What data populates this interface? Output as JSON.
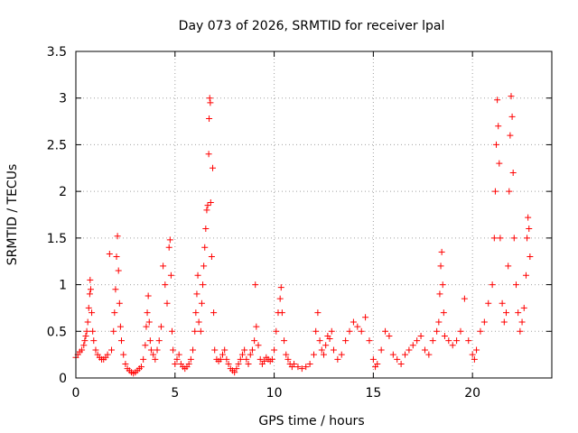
{
  "chart_data": {
    "type": "scatter",
    "title": "Day 073 of 2026, SRMTID for receiver lpal",
    "xlabel": "GPS time / hours",
    "ylabel": "SRMTID / TECUs",
    "xlim": [
      0,
      24
    ],
    "ylim": [
      0,
      3.5
    ],
    "xticks": [
      0,
      5,
      10,
      15,
      20
    ],
    "xtick_labels": [
      "0",
      "5",
      "10",
      "15",
      "20"
    ],
    "yticks": [
      0,
      0.5,
      1,
      1.5,
      2,
      2.5,
      3,
      3.5
    ],
    "ytick_labels": [
      "0",
      "0.5",
      "1",
      "1.5",
      "2",
      "2.5",
      "3",
      "3.5"
    ],
    "grid": true,
    "marker": "+",
    "colors": {
      "series": "#ff0000",
      "grid": "#a0a0a0",
      "axis": "#000000"
    },
    "series": [
      {
        "name": "SRMTID",
        "points": [
          [
            0.0,
            0.22
          ],
          [
            0.1,
            0.25
          ],
          [
            0.2,
            0.28
          ],
          [
            0.3,
            0.3
          ],
          [
            0.4,
            0.35
          ],
          [
            0.45,
            0.4
          ],
          [
            0.5,
            0.45
          ],
          [
            0.55,
            0.5
          ],
          [
            0.6,
            0.6
          ],
          [
            0.65,
            0.75
          ],
          [
            0.7,
            0.9
          ],
          [
            0.72,
            1.05
          ],
          [
            0.75,
            0.95
          ],
          [
            0.8,
            0.7
          ],
          [
            0.85,
            0.5
          ],
          [
            0.9,
            0.4
          ],
          [
            1.0,
            0.3
          ],
          [
            1.1,
            0.25
          ],
          [
            1.2,
            0.22
          ],
          [
            1.3,
            0.2
          ],
          [
            1.4,
            0.2
          ],
          [
            1.5,
            0.22
          ],
          [
            1.6,
            0.25
          ],
          [
            1.7,
            1.33
          ],
          [
            1.8,
            0.3
          ],
          [
            1.9,
            0.5
          ],
          [
            1.95,
            0.7
          ],
          [
            2.0,
            0.95
          ],
          [
            2.05,
            1.3
          ],
          [
            2.1,
            1.52
          ],
          [
            2.15,
            1.15
          ],
          [
            2.2,
            0.8
          ],
          [
            2.25,
            0.55
          ],
          [
            2.3,
            0.4
          ],
          [
            2.4,
            0.25
          ],
          [
            2.5,
            0.15
          ],
          [
            2.6,
            0.1
          ],
          [
            2.7,
            0.08
          ],
          [
            2.8,
            0.06
          ],
          [
            2.9,
            0.05
          ],
          [
            3.0,
            0.06
          ],
          [
            3.1,
            0.08
          ],
          [
            3.2,
            0.1
          ],
          [
            3.3,
            0.12
          ],
          [
            3.4,
            0.2
          ],
          [
            3.5,
            0.35
          ],
          [
            3.55,
            0.55
          ],
          [
            3.6,
            0.7
          ],
          [
            3.65,
            0.88
          ],
          [
            3.7,
            0.6
          ],
          [
            3.75,
            0.4
          ],
          [
            3.8,
            0.3
          ],
          [
            3.9,
            0.25
          ],
          [
            4.0,
            0.2
          ],
          [
            4.1,
            0.3
          ],
          [
            4.2,
            0.4
          ],
          [
            4.3,
            0.55
          ],
          [
            4.4,
            1.2
          ],
          [
            4.5,
            1.0
          ],
          [
            4.6,
            0.8
          ],
          [
            4.7,
            1.4
          ],
          [
            4.75,
            1.48
          ],
          [
            4.8,
            1.1
          ],
          [
            4.85,
            0.5
          ],
          [
            4.9,
            0.3
          ],
          [
            5.0,
            0.15
          ],
          [
            5.1,
            0.2
          ],
          [
            5.2,
            0.25
          ],
          [
            5.3,
            0.15
          ],
          [
            5.4,
            0.12
          ],
          [
            5.5,
            0.1
          ],
          [
            5.6,
            0.12
          ],
          [
            5.7,
            0.15
          ],
          [
            5.8,
            0.2
          ],
          [
            5.9,
            0.3
          ],
          [
            6.0,
            0.5
          ],
          [
            6.05,
            0.7
          ],
          [
            6.1,
            0.9
          ],
          [
            6.15,
            1.1
          ],
          [
            6.2,
            0.6
          ],
          [
            6.3,
            0.5
          ],
          [
            6.35,
            0.8
          ],
          [
            6.4,
            1.0
          ],
          [
            6.45,
            1.2
          ],
          [
            6.5,
            1.4
          ],
          [
            6.55,
            1.6
          ],
          [
            6.6,
            1.8
          ],
          [
            6.65,
            1.85
          ],
          [
            6.7,
            2.4
          ],
          [
            6.72,
            2.78
          ],
          [
            6.75,
            3.0
          ],
          [
            6.78,
            2.95
          ],
          [
            6.8,
            1.88
          ],
          [
            6.85,
            1.3
          ],
          [
            6.9,
            2.25
          ],
          [
            6.95,
            0.7
          ],
          [
            7.0,
            0.3
          ],
          [
            7.1,
            0.2
          ],
          [
            7.2,
            0.18
          ],
          [
            7.3,
            0.2
          ],
          [
            7.4,
            0.25
          ],
          [
            7.5,
            0.3
          ],
          [
            7.6,
            0.2
          ],
          [
            7.7,
            0.15
          ],
          [
            7.8,
            0.1
          ],
          [
            7.9,
            0.08
          ],
          [
            8.0,
            0.06
          ],
          [
            8.1,
            0.1
          ],
          [
            8.2,
            0.15
          ],
          [
            8.3,
            0.2
          ],
          [
            8.4,
            0.25
          ],
          [
            8.5,
            0.3
          ],
          [
            8.6,
            0.2
          ],
          [
            8.7,
            0.15
          ],
          [
            8.8,
            0.25
          ],
          [
            8.9,
            0.3
          ],
          [
            9.0,
            0.4
          ],
          [
            9.05,
            1.0
          ],
          [
            9.1,
            0.55
          ],
          [
            9.2,
            0.35
          ],
          [
            9.3,
            0.2
          ],
          [
            9.4,
            0.15
          ],
          [
            9.5,
            0.18
          ],
          [
            9.6,
            0.22
          ],
          [
            9.7,
            0.2
          ],
          [
            9.8,
            0.18
          ],
          [
            9.9,
            0.2
          ],
          [
            10.0,
            0.3
          ],
          [
            10.1,
            0.5
          ],
          [
            10.2,
            0.7
          ],
          [
            10.3,
            0.85
          ],
          [
            10.35,
            0.97
          ],
          [
            10.4,
            0.7
          ],
          [
            10.5,
            0.4
          ],
          [
            10.6,
            0.25
          ],
          [
            10.7,
            0.2
          ],
          [
            10.8,
            0.15
          ],
          [
            10.9,
            0.12
          ],
          [
            11.0,
            0.15
          ],
          [
            11.2,
            0.12
          ],
          [
            11.4,
            0.1
          ],
          [
            11.6,
            0.12
          ],
          [
            11.8,
            0.15
          ],
          [
            12.0,
            0.25
          ],
          [
            12.1,
            0.5
          ],
          [
            12.2,
            0.7
          ],
          [
            12.3,
            0.4
          ],
          [
            12.4,
            0.3
          ],
          [
            12.5,
            0.25
          ],
          [
            12.6,
            0.35
          ],
          [
            12.7,
            0.45
          ],
          [
            12.8,
            0.42
          ],
          [
            12.9,
            0.5
          ],
          [
            13.0,
            0.3
          ],
          [
            13.2,
            0.2
          ],
          [
            13.4,
            0.25
          ],
          [
            13.6,
            0.4
          ],
          [
            13.8,
            0.5
          ],
          [
            14.0,
            0.6
          ],
          [
            14.2,
            0.55
          ],
          [
            14.4,
            0.5
          ],
          [
            14.6,
            0.65
          ],
          [
            14.8,
            0.4
          ],
          [
            15.0,
            0.2
          ],
          [
            15.1,
            0.12
          ],
          [
            15.2,
            0.15
          ],
          [
            15.4,
            0.3
          ],
          [
            15.6,
            0.5
          ],
          [
            15.8,
            0.45
          ],
          [
            16.0,
            0.25
          ],
          [
            16.2,
            0.2
          ],
          [
            16.4,
            0.15
          ],
          [
            16.6,
            0.25
          ],
          [
            16.8,
            0.3
          ],
          [
            17.0,
            0.35
          ],
          [
            17.2,
            0.4
          ],
          [
            17.4,
            0.45
          ],
          [
            17.6,
            0.3
          ],
          [
            17.8,
            0.25
          ],
          [
            18.0,
            0.4
          ],
          [
            18.2,
            0.5
          ],
          [
            18.3,
            0.6
          ],
          [
            18.35,
            0.9
          ],
          [
            18.4,
            1.2
          ],
          [
            18.45,
            1.35
          ],
          [
            18.5,
            1.0
          ],
          [
            18.55,
            0.7
          ],
          [
            18.6,
            0.45
          ],
          [
            18.8,
            0.4
          ],
          [
            19.0,
            0.35
          ],
          [
            19.2,
            0.4
          ],
          [
            19.4,
            0.5
          ],
          [
            19.6,
            0.85
          ],
          [
            19.8,
            0.4
          ],
          [
            20.0,
            0.25
          ],
          [
            20.1,
            0.2
          ],
          [
            20.2,
            0.3
          ],
          [
            20.4,
            0.5
          ],
          [
            20.6,
            0.6
          ],
          [
            20.8,
            0.8
          ],
          [
            21.0,
            1.0
          ],
          [
            21.1,
            1.5
          ],
          [
            21.15,
            2.0
          ],
          [
            21.2,
            2.5
          ],
          [
            21.25,
            2.98
          ],
          [
            21.3,
            2.7
          ],
          [
            21.35,
            2.3
          ],
          [
            21.4,
            1.5
          ],
          [
            21.5,
            0.8
          ],
          [
            21.6,
            0.6
          ],
          [
            21.7,
            0.7
          ],
          [
            21.8,
            1.2
          ],
          [
            21.85,
            2.0
          ],
          [
            21.9,
            2.6
          ],
          [
            21.95,
            3.02
          ],
          [
            22.0,
            2.8
          ],
          [
            22.05,
            2.2
          ],
          [
            22.1,
            1.5
          ],
          [
            22.2,
            1.0
          ],
          [
            22.3,
            0.7
          ],
          [
            22.4,
            0.5
          ],
          [
            22.5,
            0.6
          ],
          [
            22.6,
            0.75
          ],
          [
            22.7,
            1.1
          ],
          [
            22.75,
            1.5
          ],
          [
            22.8,
            1.72
          ],
          [
            22.85,
            1.6
          ],
          [
            22.9,
            1.3
          ]
        ]
      }
    ]
  }
}
